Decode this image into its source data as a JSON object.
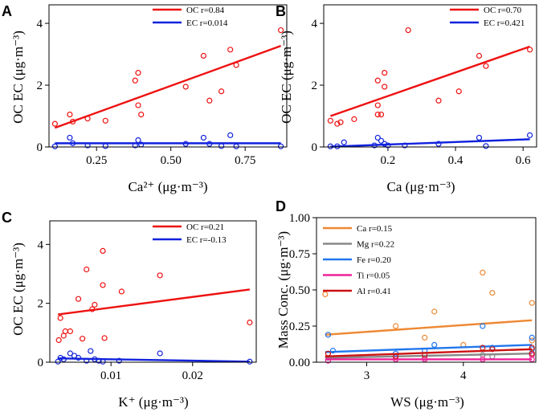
{
  "figure": {
    "panels": [
      {
        "letter": "A",
        "xlabel": "Ca²⁺ (μg·m⁻³)",
        "ylabel": "OC EC (μg·m⁻³)"
      },
      {
        "letter": "B",
        "xlabel": "Ca (μg·m⁻³)",
        "ylabel": "OC EC (μg·m⁻³)"
      },
      {
        "letter": "C",
        "xlabel": "K⁺ (μg·m⁻³)",
        "ylabel": "OC EC (μg·m⁻³)"
      },
      {
        "letter": "D",
        "xlabel": "WS (μg·m⁻³)",
        "ylabel": "Mass Conc. (μg·m⁻³)"
      }
    ]
  },
  "chart_data": [
    {
      "id": "A",
      "type": "scatter",
      "xlim": [
        0.09,
        0.89
      ],
      "ylim": [
        0,
        4.6
      ],
      "xticks": [
        0.25,
        0.5,
        0.75
      ],
      "xtick_labels": [
        "0.25",
        "0.50",
        "0.75"
      ],
      "yticks": [
        0,
        2,
        4
      ],
      "ytick_labels": [
        "0",
        "2",
        "4"
      ],
      "legend_position": "top-right",
      "series": [
        {
          "name": "OC r=0.84",
          "color": "#ee1111",
          "fit": [
            [
              0.11,
              0.62
            ],
            [
              0.87,
              3.27
            ]
          ],
          "points": [
            [
              0.11,
              0.75
            ],
            [
              0.16,
              1.05
            ],
            [
              0.17,
              0.82
            ],
            [
              0.22,
              0.92
            ],
            [
              0.28,
              0.85
            ],
            [
              0.38,
              2.15
            ],
            [
              0.39,
              2.4
            ],
            [
              0.39,
              1.35
            ],
            [
              0.4,
              1.05
            ],
            [
              0.55,
              1.95
            ],
            [
              0.61,
              2.95
            ],
            [
              0.63,
              1.5
            ],
            [
              0.67,
              1.8
            ],
            [
              0.7,
              3.15
            ],
            [
              0.72,
              2.65
            ],
            [
              0.87,
              3.78
            ]
          ]
        },
        {
          "name": "EC r=0.014",
          "color": "#1122dd",
          "fit": [
            [
              0.11,
              0.12
            ],
            [
              0.87,
              0.12
            ]
          ],
          "points": [
            [
              0.11,
              0.02
            ],
            [
              0.16,
              0.3
            ],
            [
              0.17,
              0.12
            ],
            [
              0.22,
              0.05
            ],
            [
              0.28,
              0.03
            ],
            [
              0.38,
              0.05
            ],
            [
              0.39,
              0.22
            ],
            [
              0.4,
              0.08
            ],
            [
              0.55,
              0.1
            ],
            [
              0.61,
              0.3
            ],
            [
              0.63,
              0.1
            ],
            [
              0.67,
              0.03
            ],
            [
              0.7,
              0.38
            ],
            [
              0.72,
              0.02
            ],
            [
              0.87,
              0.02
            ]
          ]
        }
      ]
    },
    {
      "id": "B",
      "type": "scatter",
      "xlim": [
        0.01,
        0.64
      ],
      "ylim": [
        0,
        4.6
      ],
      "xticks": [
        0.2,
        0.4,
        0.6
      ],
      "xtick_labels": [
        "0.2",
        "0.4",
        "0.6"
      ],
      "yticks": [
        0,
        2,
        4
      ],
      "ytick_labels": [
        "0",
        "2",
        "4"
      ],
      "legend_position": "top-right",
      "series": [
        {
          "name": "OC r=0.70",
          "color": "#ee1111",
          "fit": [
            [
              0.03,
              1.0
            ],
            [
              0.62,
              3.25
            ]
          ],
          "points": [
            [
              0.03,
              0.85
            ],
            [
              0.05,
              0.75
            ],
            [
              0.06,
              0.8
            ],
            [
              0.1,
              0.9
            ],
            [
              0.17,
              1.05
            ],
            [
              0.17,
              1.35
            ],
            [
              0.17,
              2.15
            ],
            [
              0.18,
              1.05
            ],
            [
              0.19,
              1.95
            ],
            [
              0.19,
              2.4
            ],
            [
              0.26,
              3.78
            ],
            [
              0.35,
              1.5
            ],
            [
              0.41,
              1.8
            ],
            [
              0.47,
              2.95
            ],
            [
              0.49,
              2.62
            ],
            [
              0.62,
              3.15
            ]
          ]
        },
        {
          "name": "EC r=0.421",
          "color": "#1122dd",
          "fit": [
            [
              0.03,
              0.01
            ],
            [
              0.62,
              0.25
            ]
          ],
          "points": [
            [
              0.03,
              0.02
            ],
            [
              0.05,
              0.02
            ],
            [
              0.07,
              0.15
            ],
            [
              0.16,
              0.05
            ],
            [
              0.17,
              0.3
            ],
            [
              0.18,
              0.2
            ],
            [
              0.19,
              0.1
            ],
            [
              0.2,
              0.05
            ],
            [
              0.25,
              0.05
            ],
            [
              0.35,
              0.1
            ],
            [
              0.47,
              0.3
            ],
            [
              0.49,
              0.03
            ],
            [
              0.62,
              0.38
            ]
          ]
        }
      ]
    },
    {
      "id": "C",
      "type": "scatter",
      "xlim": [
        0.0025,
        0.0278
      ],
      "ylim": [
        0,
        4.8
      ],
      "xticks": [
        0.01,
        0.02
      ],
      "xtick_labels": [
        "0.01",
        "0.02"
      ],
      "yticks": [
        0,
        2,
        4
      ],
      "ytick_labels": [
        "0",
        "2",
        "4"
      ],
      "legend_position": "top-right",
      "series": [
        {
          "name": "OC r=0.21",
          "color": "#ee1111",
          "fit": [
            [
              0.0035,
              1.62
            ],
            [
              0.027,
              2.47
            ]
          ],
          "points": [
            [
              0.0036,
              0.75
            ],
            [
              0.0038,
              1.5
            ],
            [
              0.0042,
              0.9
            ],
            [
              0.0044,
              1.05
            ],
            [
              0.005,
              1.05
            ],
            [
              0.006,
              2.15
            ],
            [
              0.0065,
              0.8
            ],
            [
              0.007,
              3.15
            ],
            [
              0.0077,
              1.8
            ],
            [
              0.008,
              1.95
            ],
            [
              0.009,
              3.78
            ],
            [
              0.009,
              2.62
            ],
            [
              0.0092,
              0.82
            ],
            [
              0.0113,
              2.4
            ],
            [
              0.016,
              2.95
            ],
            [
              0.027,
              1.35
            ]
          ]
        },
        {
          "name": "EC r=-0.13",
          "color": "#1122dd",
          "fit": [
            [
              0.0035,
              0.13
            ],
            [
              0.027,
              0.02
            ]
          ],
          "points": [
            [
              0.0035,
              0.02
            ],
            [
              0.0038,
              0.15
            ],
            [
              0.0042,
              0.1
            ],
            [
              0.005,
              0.3
            ],
            [
              0.0055,
              0.22
            ],
            [
              0.006,
              0.15
            ],
            [
              0.007,
              0.05
            ],
            [
              0.0075,
              0.38
            ],
            [
              0.008,
              0.1
            ],
            [
              0.0085,
              0.05
            ],
            [
              0.009,
              0.02
            ],
            [
              0.011,
              0.05
            ],
            [
              0.016,
              0.3
            ],
            [
              0.027,
              0.02
            ]
          ]
        }
      ]
    },
    {
      "id": "D",
      "type": "scatter",
      "xlim": [
        2.48,
        4.75
      ],
      "ylim": [
        0,
        1.0
      ],
      "xticks": [
        3,
        4
      ],
      "xtick_labels": [
        "3",
        "4"
      ],
      "yticks": [
        0,
        0.25,
        0.5,
        0.75,
        1.0
      ],
      "ytick_labels": [
        "0.00",
        "0.25",
        "0.50",
        "0.75",
        "1.00"
      ],
      "legend_position": "top-left",
      "series": [
        {
          "name": "Ca r=0.15",
          "color": "#ee8833",
          "fit": [
            [
              2.57,
              0.19
            ],
            [
              4.71,
              0.29
            ]
          ],
          "points": [
            [
              2.57,
              0.47
            ],
            [
              2.6,
              0.19
            ],
            [
              3.3,
              0.25
            ],
            [
              3.6,
              0.17
            ],
            [
              3.7,
              0.35
            ],
            [
              4.2,
              0.62
            ],
            [
              4.3,
              0.48
            ],
            [
              4.71,
              0.41
            ],
            [
              4.71,
              0.15
            ],
            [
              4.0,
              0.12
            ]
          ]
        },
        {
          "name": "Mg r=0.22",
          "color": "#888888",
          "fit": [
            [
              2.57,
              0.03
            ],
            [
              4.71,
              0.06
            ]
          ],
          "points": [
            [
              2.6,
              0.03
            ],
            [
              3.3,
              0.02
            ],
            [
              3.6,
              0.03
            ],
            [
              4.2,
              0.05
            ],
            [
              4.3,
              0.04
            ],
            [
              4.71,
              0.06
            ]
          ]
        },
        {
          "name": "Fe r=0.20",
          "color": "#2277ee",
          "fit": [
            [
              2.57,
              0.07
            ],
            [
              4.71,
              0.12
            ]
          ],
          "points": [
            [
              2.6,
              0.19
            ],
            [
              2.65,
              0.08
            ],
            [
              3.3,
              0.06
            ],
            [
              3.6,
              0.08
            ],
            [
              3.7,
              0.12
            ],
            [
              4.2,
              0.25
            ],
            [
              4.3,
              0.1
            ],
            [
              4.71,
              0.17
            ],
            [
              4.71,
              0.09
            ]
          ]
        },
        {
          "name": "Ti r=0.05",
          "color": "#ee2299",
          "fit": [
            [
              2.57,
              0.02
            ],
            [
              4.71,
              0.02
            ]
          ],
          "points": [
            [
              2.6,
              0.01
            ],
            [
              3.3,
              0.02
            ],
            [
              3.6,
              0.02
            ],
            [
              4.2,
              0.02
            ],
            [
              4.71,
              0.02
            ],
            [
              4.71,
              0.05
            ]
          ]
        },
        {
          "name": "Al r=0.41",
          "color": "#cc1111",
          "fit": [
            [
              2.57,
              0.04
            ],
            [
              4.71,
              0.09
            ]
          ],
          "points": [
            [
              2.6,
              0.06
            ],
            [
              3.3,
              0.04
            ],
            [
              3.6,
              0.05
            ],
            [
              4.2,
              0.1
            ],
            [
              4.3,
              0.09
            ],
            [
              4.71,
              0.1
            ],
            [
              4.71,
              0.06
            ]
          ]
        }
      ]
    }
  ]
}
